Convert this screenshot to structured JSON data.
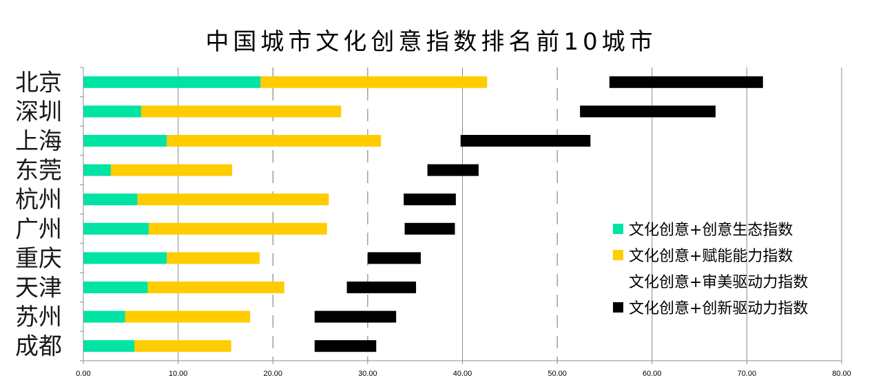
{
  "chart_data": {
    "type": "bar",
    "stacked": true,
    "orientation": "horizontal",
    "title": "中国城市文化创意指数排名前10城市",
    "xlabel": "",
    "ylabel": "",
    "xlim": [
      0,
      80
    ],
    "x_ticks": [
      "0.00",
      "10.00",
      "20.00",
      "30.00",
      "40.00",
      "50.00",
      "60.00",
      "70.00",
      "80.00"
    ],
    "grid": true,
    "legend_position": "right",
    "categories": [
      "北京",
      "深圳",
      "上海",
      "东莞",
      "杭州",
      "广州",
      "重庆",
      "天津",
      "苏州",
      "成都"
    ],
    "series": [
      {
        "name": "文化创意+创意生态指数",
        "color": "#00E3A3",
        "visible": true,
        "values": [
          18.7,
          6.1,
          8.8,
          2.9,
          5.7,
          6.9,
          8.8,
          6.8,
          4.4,
          5.4
        ]
      },
      {
        "name": "文化创意+赋能能力指数",
        "color": "#FFCC00",
        "visible": true,
        "values": [
          23.9,
          21.1,
          22.6,
          12.8,
          20.2,
          18.8,
          9.8,
          14.4,
          13.2,
          10.2
        ]
      },
      {
        "name": "文化创意+审美驱动力指数",
        "color": "#FFFFFF",
        "visible": false,
        "values": [
          12.9,
          25.2,
          8.4,
          20.6,
          7.9,
          8.2,
          11.4,
          6.6,
          6.8,
          8.8
        ]
      },
      {
        "name": "文化创意+创新驱动力指数",
        "color": "#000000",
        "visible": true,
        "values": [
          16.2,
          14.3,
          13.7,
          5.4,
          5.5,
          5.3,
          5.6,
          7.3,
          8.6,
          6.5
        ]
      }
    ]
  }
}
